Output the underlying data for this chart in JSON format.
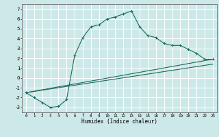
{
  "xlabel": "Humidex (Indice chaleur)",
  "background_color": "#cce8e8",
  "grid_color": "#ffffff",
  "line_color": "#1a6b5a",
  "xlim": [
    -0.5,
    23.5
  ],
  "ylim": [
    -3.5,
    7.5
  ],
  "xticks": [
    0,
    1,
    2,
    3,
    4,
    5,
    6,
    7,
    8,
    9,
    10,
    11,
    12,
    13,
    14,
    15,
    16,
    17,
    18,
    19,
    20,
    21,
    22,
    23
  ],
  "yticks": [
    -3,
    -2,
    -1,
    0,
    1,
    2,
    3,
    4,
    5,
    6,
    7
  ],
  "curve1_x": [
    0,
    1,
    2,
    3,
    4,
    5,
    6,
    7,
    8,
    9,
    10,
    11,
    12,
    13,
    14,
    15,
    16,
    17,
    18,
    19,
    20,
    21,
    22,
    23
  ],
  "curve1_y": [
    -1.5,
    -2.0,
    -2.5,
    -3.0,
    -2.9,
    -2.2,
    2.3,
    4.1,
    5.2,
    5.4,
    6.0,
    6.2,
    6.5,
    6.8,
    5.2,
    4.3,
    4.1,
    3.5,
    3.3,
    3.3,
    2.9,
    2.5,
    1.9,
    1.9
  ],
  "curve2_x": [
    0,
    23
  ],
  "curve2_y": [
    -1.5,
    1.9
  ],
  "curve3_x": [
    0,
    23
  ],
  "curve3_y": [
    -1.5,
    1.4
  ]
}
